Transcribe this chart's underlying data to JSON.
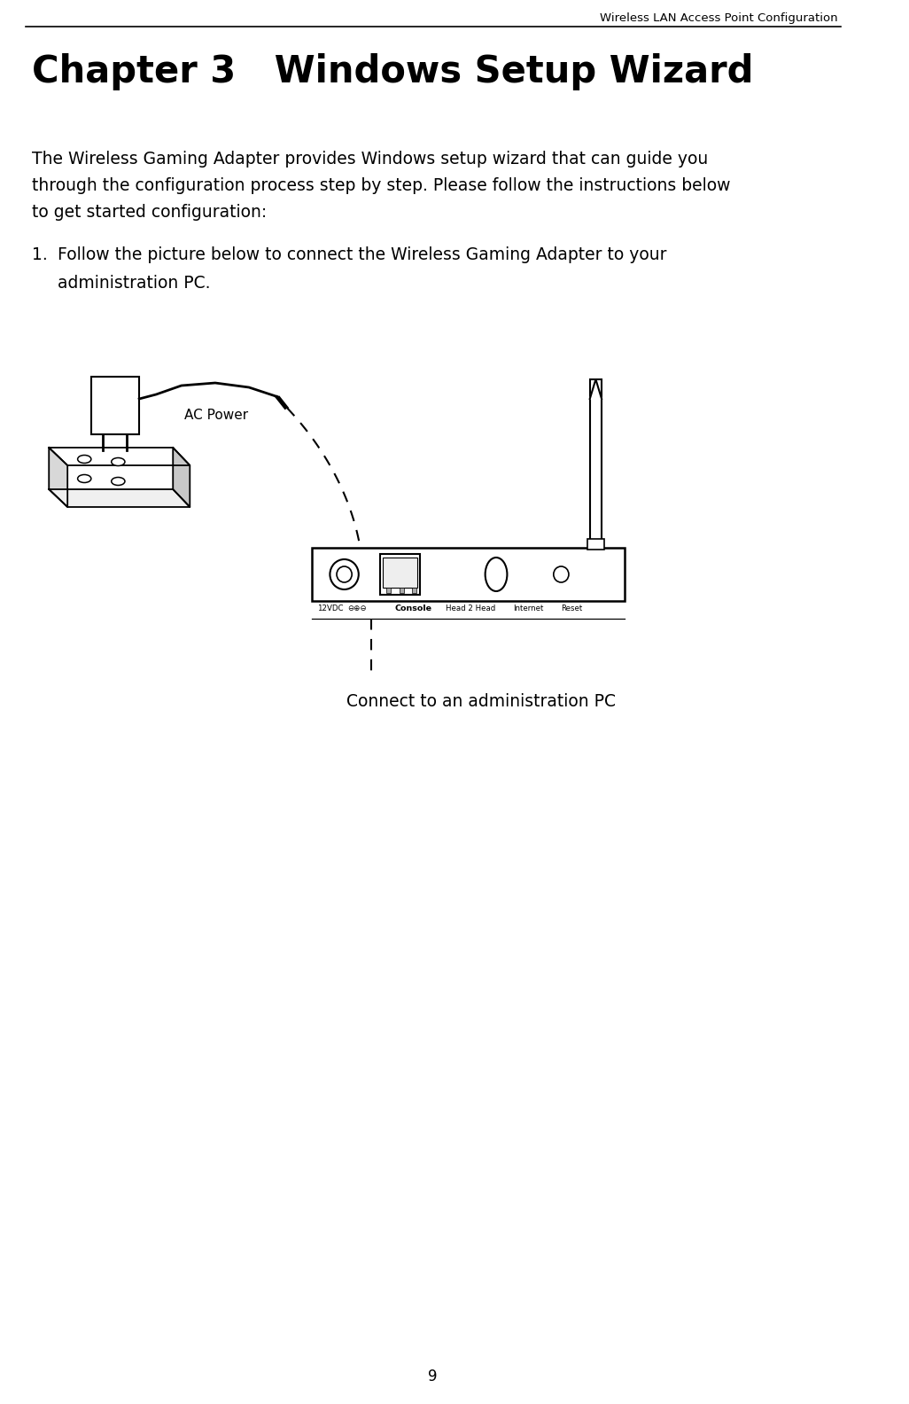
{
  "header_text": "Wireless LAN Access Point Configuration",
  "chapter_title": "Chapter 3   Windows Setup Wizard",
  "body_text_line1": "The Wireless Gaming Adapter provides Windows setup wizard that can guide you",
  "body_text_line2": "through the configuration process step by step. Please follow the instructions below",
  "body_text_line3": "to get started configuration:",
  "item1_line1": "Follow the picture below to connect the Wireless Gaming Adapter to your",
  "item1_line2": "administration PC.",
  "caption_text": "Connect to an administration PC",
  "ac_power_label": "AC Power",
  "page_number": "9",
  "bg_color": "#ffffff",
  "text_color": "#000000",
  "header_line_color": "#000000"
}
